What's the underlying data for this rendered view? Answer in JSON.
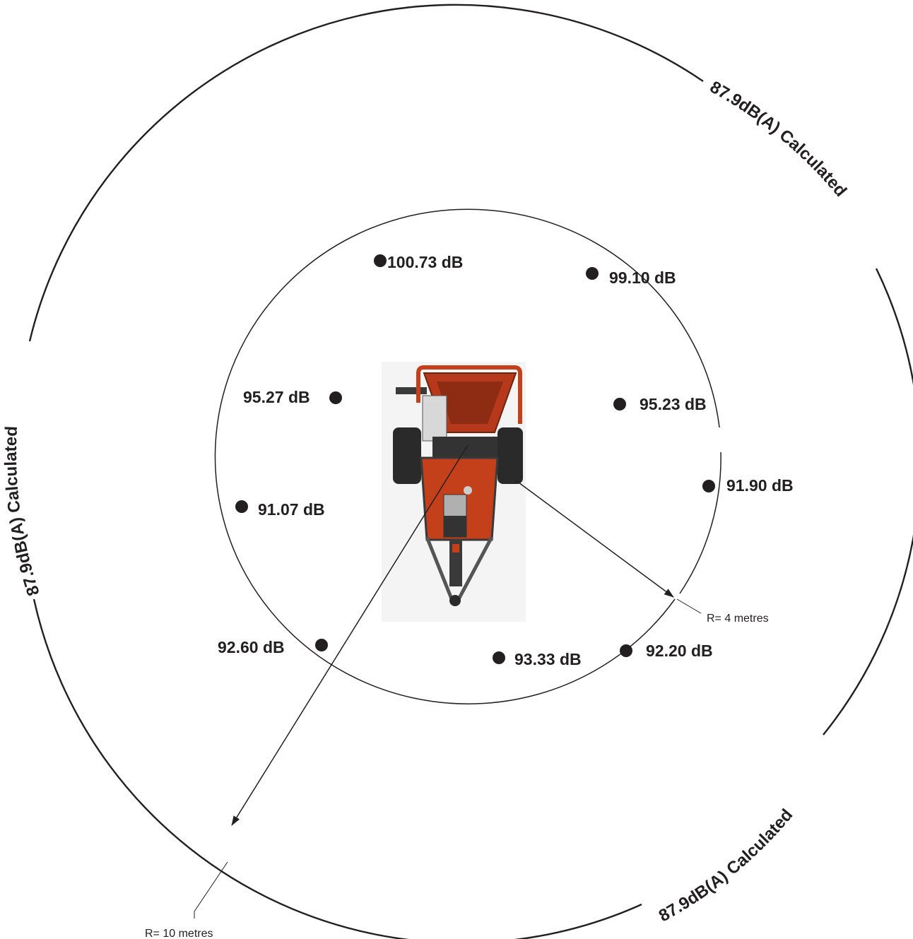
{
  "outer_ring": {
    "labels": [
      "87.9dB(A) Calculated",
      "87.9dB(A) Calculated",
      "87.9dB(A) Calculated"
    ]
  },
  "radius_labels": {
    "inner": "R= 4 metres",
    "outer": "R= 10 metres"
  },
  "measurements": [
    {
      "value": "100.73 dB"
    },
    {
      "value": "99.10 dB"
    },
    {
      "value": "95.27 dB"
    },
    {
      "value": "95.23 dB"
    },
    {
      "value": "91.90 dB"
    },
    {
      "value": "91.07 dB"
    },
    {
      "value": "92.60 dB"
    },
    {
      "value": "93.33 dB"
    },
    {
      "value": "92.20 dB"
    }
  ],
  "colors": {
    "ink": "#231f20",
    "machine_orange": "#c3401a",
    "machine_dark": "#3a3a3a"
  }
}
